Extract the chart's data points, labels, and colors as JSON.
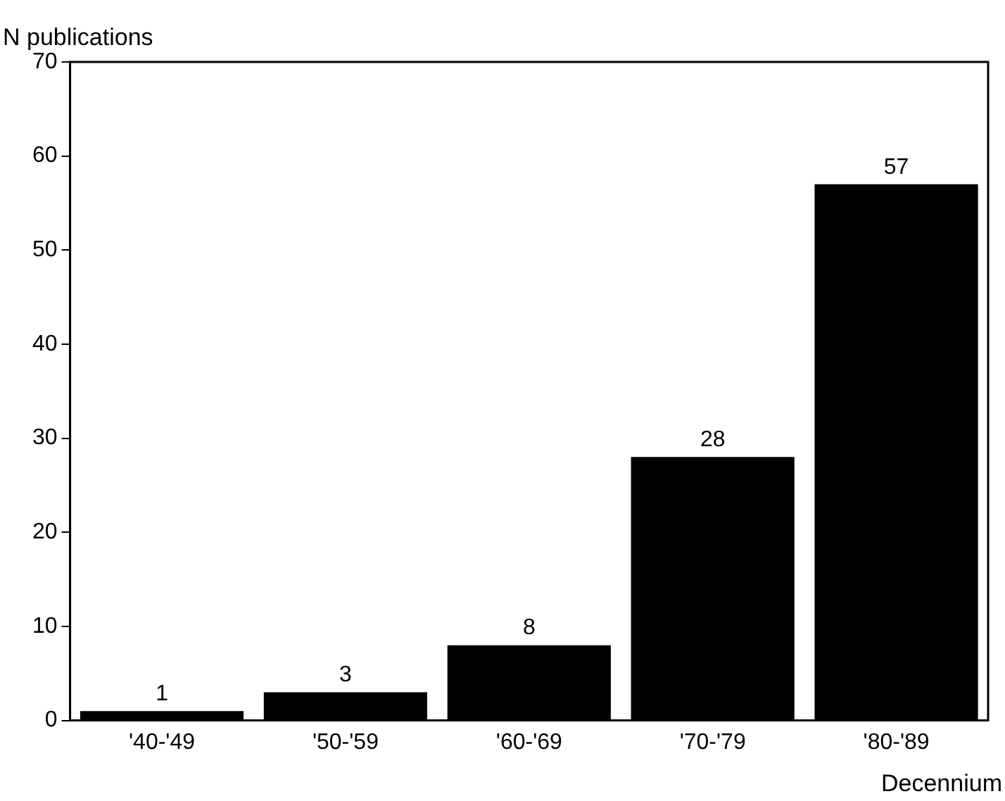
{
  "chart_data": {
    "type": "bar",
    "xlabel": "Decennium",
    "ylabel": "N publications",
    "categories": [
      "'40-'49",
      "'50-'59",
      "'60-'69",
      "'70-'79",
      "'80-'89"
    ],
    "values": [
      1,
      3,
      8,
      28,
      57
    ],
    "color": "#000000",
    "ylim": [
      0,
      70
    ],
    "yticks": [
      0,
      10,
      20,
      30,
      40,
      50,
      60,
      70
    ],
    "grid": false,
    "legend": false,
    "data_labels": true
  }
}
